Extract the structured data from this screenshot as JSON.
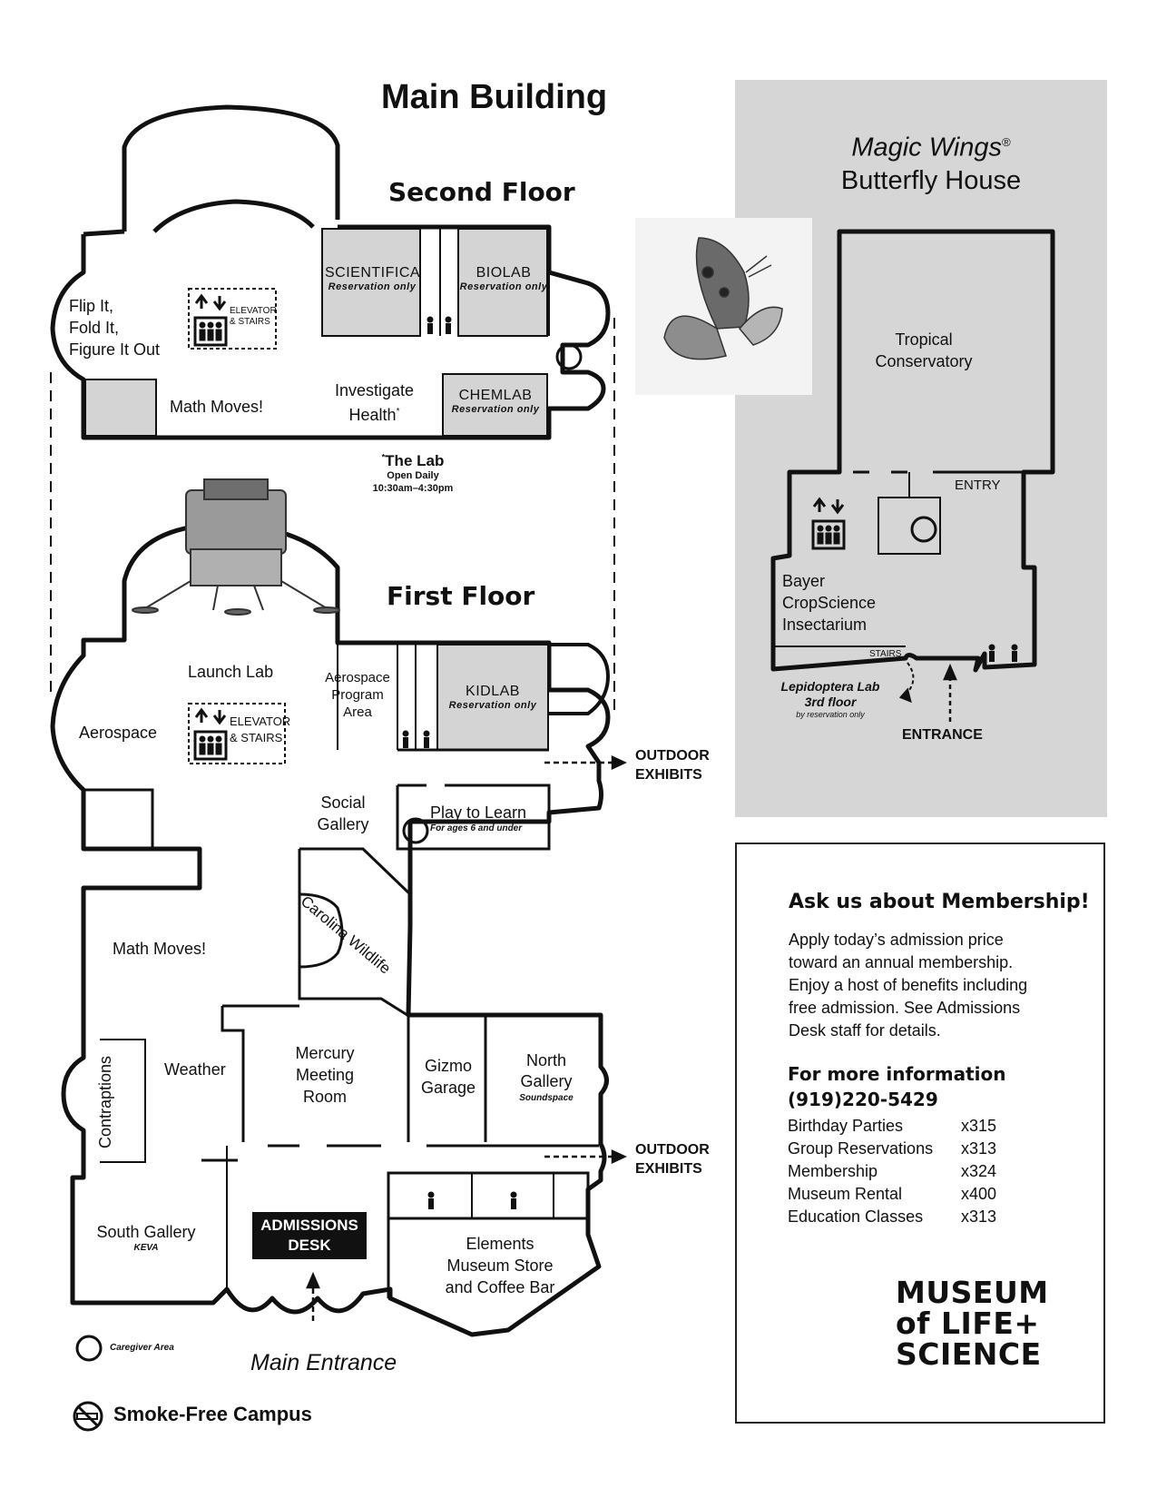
{
  "main_title": "Main Building",
  "second_floor": {
    "title": "Second Floor",
    "rooms": {
      "flip_it": [
        "Flip It,",
        "Fold It,",
        "Figure It Out"
      ],
      "scientifica": "SCIENTIFICA",
      "scientifica_note": "Reservation only",
      "biolab": "BIOLAB",
      "biolab_note": "Reservation only",
      "math_moves": "Math Moves!",
      "investigate": "Investigate",
      "health": "Health",
      "health_mark": "*",
      "chemlab": "CHEMLAB",
      "chemlab_note": "Reservation only",
      "elevator": "ELEVATOR",
      "stairs": "& STAIRS"
    }
  },
  "the_lab": {
    "mark": "*",
    "name": "The Lab",
    "open": "Open Daily",
    "hours": "10:30am–4:30pm"
  },
  "first_floor": {
    "title": "First Floor",
    "rooms": {
      "launch_lab": "Launch Lab",
      "aerospace": "Aerospace",
      "aerospace_program": [
        "Aerospace",
        "Program",
        "Area"
      ],
      "kidlab": "KIDLAB",
      "kidlab_note": "Reservation only",
      "elevator": "ELEVATOR",
      "stairs": "& STAIRS",
      "social_gallery": [
        "Social",
        "Gallery"
      ],
      "play_to_learn": "Play to Learn",
      "play_to_learn_note": "For ages 6 and under",
      "carolina_wildlife": "Carolina Wildlife",
      "math_moves": "Math Moves!",
      "contraptions": "Contraptions",
      "weather": "Weather",
      "mercury": [
        "Mercury",
        "Meeting",
        "Room"
      ],
      "gizmo": [
        "Gizmo",
        "Garage"
      ],
      "north_gallery": [
        "North",
        "Gallery"
      ],
      "north_gallery_note": "Soundspace",
      "south_gallery": "South Gallery",
      "south_gallery_note": "KEVA",
      "admissions": [
        "ADMISSIONS",
        "DESK"
      ],
      "elements": [
        "Elements",
        "Museum Store",
        "and Coffee Bar"
      ],
      "main_entrance": "Main Entrance"
    }
  },
  "outdoor_exhibits": [
    "OUTDOOR",
    "EXHIBITS"
  ],
  "butterfly_house": {
    "title_italic": "Magic Wings",
    "registered": "®",
    "title": "Butterfly House",
    "tropical": [
      "Tropical",
      "Conservatory"
    ],
    "entry": "ENTRY",
    "bayer": [
      "Bayer",
      "CropScience",
      "Insectarium"
    ],
    "stairs": "STAIRS",
    "lepidoptera": [
      "Lepidoptera Lab",
      "3rd floor",
      "by reservation only"
    ],
    "entrance": "ENTRANCE"
  },
  "legend": {
    "caregiver": "Caregiver Area",
    "smoke_free": "Smoke-Free Campus"
  },
  "membership": {
    "heading": "Ask us about Membership!",
    "body": [
      "Apply today’s admission price",
      "toward an annual membership.",
      "Enjoy a host of benefits including",
      "free admission. See Admissions",
      "Desk staff for details."
    ],
    "more_info": "For more information",
    "phone": "(919)220-5429",
    "extensions": [
      {
        "label": "Birthday Parties",
        "ext": "x315"
      },
      {
        "label": "Group Reservations",
        "ext": "x313"
      },
      {
        "label": "Membership",
        "ext": "x324"
      },
      {
        "label": "Museum Rental",
        "ext": "x400"
      },
      {
        "label": "Education Classes",
        "ext": "x313"
      }
    ]
  },
  "logo": [
    "MUSEUM",
    "of LIFE+",
    "SCIENCE"
  ],
  "colors": {
    "reserved_room": "#d4d4d4",
    "panel": "#d6d6d6",
    "ink": "#111111"
  }
}
